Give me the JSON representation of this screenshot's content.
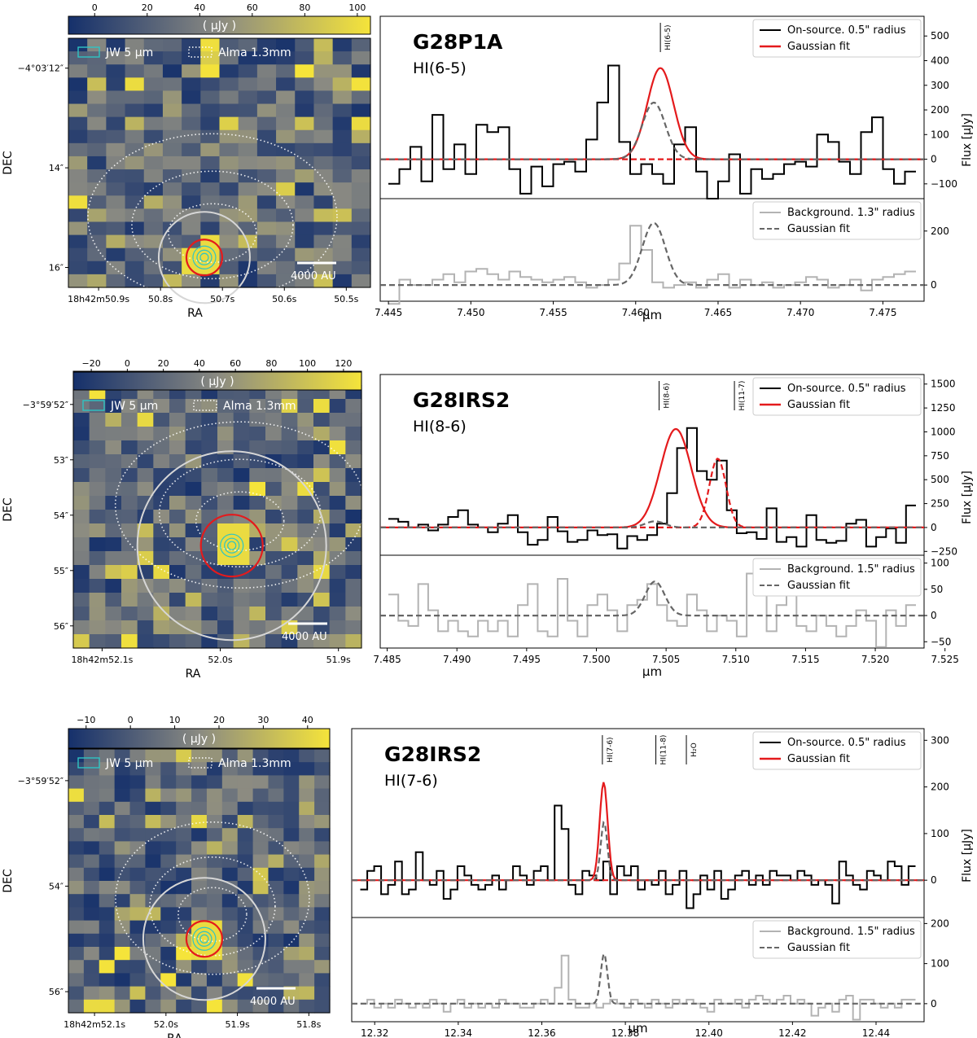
{
  "colorbar_unit": "( μJy )",
  "legend_map": {
    "jw": "JW 5 μm",
    "alma": "Alma 1.3mm"
  },
  "map_axes": {
    "xlabel": "RA",
    "ylabel": "DEC"
  },
  "spec_xlabel": "μm",
  "spec_ylabel": "Flux [μJy]",
  "colors": {
    "onsource": "#000000",
    "fit": "#e41a1c",
    "background": "#b3b3b3",
    "bgfit": "#666666",
    "jw": "#2ec4c4",
    "alma": "#ffffff",
    "map_low": "#15306b",
    "map_high": "#f5e43a"
  },
  "panels": [
    {
      "name": "G28P1A",
      "line": "HI(6-5)",
      "colorbar_ticks": [
        "0",
        "20",
        "40",
        "60",
        "80",
        "100"
      ],
      "colorbar_range": [
        -10,
        105
      ],
      "ra_ticks": [
        "18h42m50.9s",
        "50.8s",
        "50.7s",
        "50.6s",
        "50.5s"
      ],
      "dec_ticks": [
        "−4°03′12″",
        "14″",
        "16″"
      ],
      "scalebar": "4000 AU",
      "legend_on": "On-source. 0.5\" radius",
      "legend_fit": "Gaussian fit",
      "legend_bg": "Background. 1.3\" radius",
      "legend_bgfit": "Gaussian fit",
      "line_markers": [
        {
          "label": "HI(6-5)",
          "x": 7.4615
        }
      ],
      "chart_data": {
        "type": "line",
        "xlim": [
          7.4445,
          7.4775
        ],
        "xticks": [
          "7.445",
          "7.450",
          "7.455",
          "7.460",
          "7.465",
          "7.470",
          "7.475"
        ],
        "top": {
          "ylim": [
            -160,
            580
          ],
          "yticks": [
            "−100",
            "0",
            "100",
            "200",
            "300",
            "400",
            "500"
          ],
          "on_source": [
            -100,
            -40,
            50,
            -90,
            180,
            -40,
            60,
            -60,
            140,
            110,
            130,
            -40,
            -140,
            -30,
            -110,
            -20,
            -10,
            -50,
            80,
            230,
            380,
            70,
            -60,
            -20,
            -60,
            -100,
            60,
            130,
            -50,
            -160,
            -90,
            20,
            -140,
            -40,
            -80,
            -60,
            -20,
            -10,
            -30,
            100,
            70,
            -10,
            -60,
            110,
            170,
            -40,
            -100,
            -50
          ],
          "fits": [
            {
              "type": "solid",
              "color": "fit",
              "amp": 370,
              "mu": 7.4615,
              "sigma": 0.0008
            },
            {
              "type": "dashed",
              "color": "fit",
              "amp": 0,
              "mu": 7.4615,
              "sigma": 0.0008
            },
            {
              "type": "dashed",
              "color": "bgfit",
              "amp": 230,
              "mu": 7.4611,
              "sigma": 0.0007
            }
          ]
        },
        "bottom": {
          "ylim": [
            -60,
            320
          ],
          "yticks": [
            "0",
            "200"
          ],
          "background": [
            -70,
            20,
            0,
            0,
            20,
            40,
            10,
            50,
            60,
            40,
            20,
            50,
            30,
            20,
            10,
            20,
            30,
            10,
            -10,
            0,
            20,
            80,
            220,
            130,
            10,
            -10,
            0,
            10,
            -10,
            20,
            40,
            -10,
            20,
            0,
            10,
            -10,
            0,
            10,
            30,
            20,
            -10,
            0,
            20,
            -20,
            20,
            30,
            40,
            50
          ],
          "fits": [
            {
              "type": "dashed",
              "color": "bgfit",
              "amp": 230,
              "mu": 7.4611,
              "sigma": 0.0007
            }
          ]
        }
      }
    },
    {
      "name": "G28IRS2",
      "line": "HI(8-6)",
      "colorbar_ticks": [
        "−20",
        "0",
        "20",
        "40",
        "60",
        "80",
        "100",
        "120"
      ],
      "colorbar_range": [
        -30,
        130
      ],
      "ra_ticks": [
        "18h42m52.1s",
        "52.0s",
        "51.9s"
      ],
      "dec_ticks": [
        "−3°59′52″",
        "53″",
        "54″",
        "55″",
        "56″"
      ],
      "scalebar": "4000 AU",
      "legend_on": "On-source. 0.5\" radius",
      "legend_fit": "Gaussian fit",
      "legend_bg": "Background. 1.5\" radius",
      "legend_bgfit": "Gaussian fit",
      "line_markers": [
        {
          "label": "HI(8-6)",
          "x": 7.5045
        },
        {
          "label": "HI(11-7)",
          "x": 7.5099
        }
      ],
      "chart_data": {
        "type": "line",
        "xlim": [
          7.4845,
          7.5235
        ],
        "xticks": [
          "7.485",
          "7.490",
          "7.495",
          "7.500",
          "7.505",
          "7.510",
          "7.515",
          "7.520",
          "7.525"
        ],
        "top": {
          "ylim": [
            -290,
            1600
          ],
          "yticks": [
            "−250",
            "0",
            "250",
            "500",
            "750",
            "1000",
            "1250",
            "1500"
          ],
          "on_source": [
            90,
            60,
            0,
            30,
            -30,
            30,
            110,
            180,
            30,
            0,
            -50,
            40,
            130,
            -50,
            -180,
            -130,
            110,
            -40,
            -150,
            -130,
            -30,
            -80,
            -70,
            -220,
            -90,
            -130,
            -80,
            40,
            360,
            830,
            1040,
            590,
            500,
            700,
            180,
            -60,
            -50,
            -120,
            200,
            -150,
            -100,
            -200,
            130,
            -130,
            -160,
            -140,
            40,
            80,
            -200,
            -100,
            -10,
            -160,
            230
          ],
          "fits": [
            {
              "type": "solid",
              "color": "fit",
              "amp": 1030,
              "mu": 7.5057,
              "sigma": 0.0011
            },
            {
              "type": "dashed",
              "color": "fit",
              "amp": 720,
              "mu": 7.5087,
              "sigma": 0.0006
            },
            {
              "type": "dashed",
              "color": "bgfit",
              "amp": 65,
              "mu": 7.5042,
              "sigma": 0.0007
            }
          ]
        },
        "bottom": {
          "ylim": [
            -62,
            115
          ],
          "yticks": [
            "−50",
            "0",
            "50",
            "100"
          ],
          "background": [
            40,
            -10,
            -20,
            60,
            10,
            -30,
            -10,
            -30,
            -40,
            -10,
            -30,
            -10,
            -40,
            20,
            60,
            -30,
            -40,
            70,
            -10,
            -40,
            20,
            40,
            10,
            -30,
            20,
            30,
            60,
            20,
            -10,
            -20,
            40,
            10,
            -30,
            0,
            -10,
            -40,
            80,
            50,
            -30,
            20,
            80,
            -20,
            -30,
            0,
            -20,
            -40,
            -20,
            10,
            -10,
            -60,
            10,
            -20,
            20
          ],
          "fits": [
            {
              "type": "dashed",
              "color": "bgfit",
              "amp": 65,
              "mu": 7.5042,
              "sigma": 0.0007
            }
          ]
        }
      }
    },
    {
      "name": "G28IRS2",
      "line": "HI(7-6)",
      "colorbar_ticks": [
        "−10",
        "0",
        "10",
        "20",
        "30",
        "40"
      ],
      "colorbar_range": [
        -14,
        45
      ],
      "ra_ticks": [
        "18h42m52.1s",
        "52.0s",
        "51.9s",
        "51.8s"
      ],
      "dec_ticks": [
        "−3°59′52″",
        "54″",
        "56″"
      ],
      "scalebar": "4000 AU",
      "legend_on": "On-source. 0.5\" radius",
      "legend_fit": "Gaussian fit",
      "legend_bg": "Background. 1.5\" radius",
      "legend_bgfit": "Gaussian fit",
      "line_markers": [
        {
          "label": "HI(7-6)",
          "x": 12.3745
        },
        {
          "label": "HI(11-8)",
          "x": 12.3873
        },
        {
          "label": "H₂O",
          "x": 12.3946
        }
      ],
      "chart_data": {
        "type": "line",
        "xlim": [
          12.3145,
          12.4515
        ],
        "xticks": [
          "12.32",
          "12.34",
          "12.36",
          "12.38",
          "12.40",
          "12.42",
          "12.44"
        ],
        "top": {
          "ylim": [
            -80,
            325
          ],
          "yticks": [
            "0",
            "100",
            "200",
            "300"
          ],
          "on_source": [
            -20,
            20,
            30,
            -30,
            -10,
            40,
            -30,
            -20,
            60,
            0,
            -10,
            20,
            -40,
            -20,
            30,
            10,
            -10,
            -20,
            -10,
            10,
            -20,
            0,
            30,
            10,
            -10,
            20,
            30,
            0,
            160,
            110,
            -10,
            -30,
            20,
            10,
            0,
            40,
            -30,
            30,
            10,
            30,
            -20,
            0,
            -10,
            20,
            -30,
            -10,
            20,
            -60,
            -30,
            10,
            -20,
            20,
            -40,
            -20,
            10,
            20,
            -10,
            10,
            -10,
            20,
            10,
            10,
            0,
            20,
            10,
            -10,
            0,
            -10,
            -50,
            40,
            10,
            -10,
            -20,
            20,
            10,
            0,
            40,
            30,
            -10,
            30
          ],
          "fits": [
            {
              "type": "solid",
              "color": "fit",
              "amp": 210,
              "mu": 12.3748,
              "sigma": 0.00095
            },
            {
              "type": "dashed",
              "color": "fit",
              "amp": 0,
              "mu": 12.3748,
              "sigma": 0.001
            },
            {
              "type": "dashed",
              "color": "bgfit",
              "amp": 125,
              "mu": 12.3749,
              "sigma": 0.0008
            }
          ]
        },
        "bottom": {
          "ylim": [
            -45,
            215
          ],
          "yticks": [
            "0",
            "100",
            "200"
          ],
          "background": [
            0,
            10,
            -10,
            0,
            -10,
            10,
            0,
            -10,
            0,
            -10,
            10,
            0,
            -20,
            0,
            10,
            -10,
            0,
            -10,
            0,
            -10,
            10,
            0,
            0,
            -10,
            -10,
            0,
            10,
            0,
            40,
            120,
            10,
            -10,
            -10,
            0,
            -10,
            0,
            10,
            0,
            -10,
            10,
            0,
            -10,
            10,
            0,
            -10,
            10,
            0,
            10,
            0,
            -10,
            -20,
            10,
            0,
            0,
            10,
            -10,
            10,
            20,
            10,
            0,
            10,
            20,
            0,
            10,
            0,
            -30,
            -10,
            0,
            -20,
            10,
            20,
            -40,
            10,
            10,
            0,
            -10,
            0,
            -10,
            10,
            10
          ],
          "fits": [
            {
              "type": "dashed",
              "color": "bgfit",
              "amp": 125,
              "mu": 12.3749,
              "sigma": 0.0008
            }
          ]
        }
      }
    }
  ]
}
